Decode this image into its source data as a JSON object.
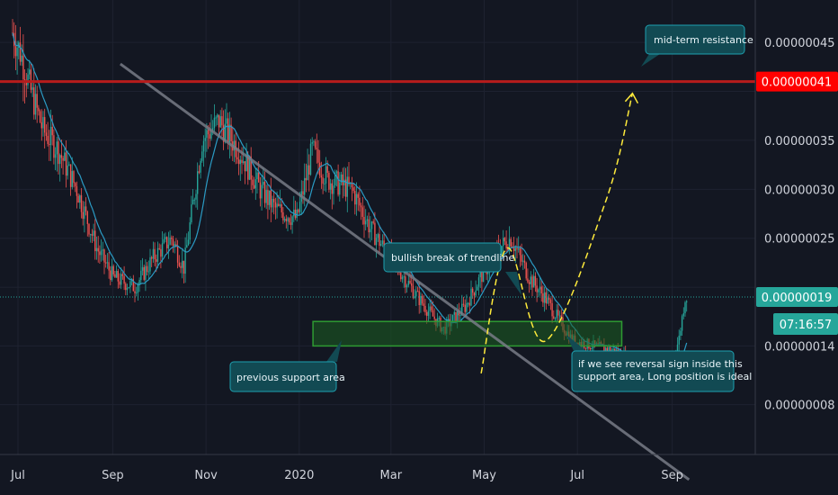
{
  "chart_data": {
    "type": "candlestick",
    "x_range": [
      "2019-06-20",
      "2019-10-04"
    ],
    "y_range": [
      2e-08,
      4.9e-08
    ],
    "x_ticks": [
      "Jul",
      "Sep",
      "Nov",
      "2020",
      "Mar",
      "May",
      "Jul",
      "Sep"
    ],
    "y_ticks": [
      {
        "value": 4.5e-07,
        "label": "0.00000045"
      },
      {
        "value": 3.5e-07,
        "label": "0.00000035"
      },
      {
        "value": 3e-07,
        "label": "0.00000030"
      },
      {
        "value": 2.5e-07,
        "label": "0.00000025"
      },
      {
        "value": 1.4e-07,
        "label": "0.00000014"
      },
      {
        "value": 8e-08,
        "label": "0.00000008"
      }
    ],
    "grid": true,
    "colors": {
      "background": "#131722",
      "grid": "#1e2230",
      "up": "#26a69a",
      "down": "#ef5350",
      "moving_average": "#2b9bc4",
      "resistance": "#b71c1c",
      "trendline": "#787b86",
      "support_zone": "#2e7d32",
      "projection": "#ffeb3b",
      "annotation_bg": "#124a53",
      "annotation_border": "#1ea0b0"
    },
    "resistance": {
      "price": 4.1e-07,
      "label": "0.00000041",
      "color": "#ff0000"
    },
    "current_price": {
      "price": 1.9e-07,
      "label": "0.00000019",
      "countdown": "07:16:57",
      "color": "#26a69a"
    },
    "trendline": {
      "from": {
        "date": "2019-09-06",
        "price": 4.28e-07
      },
      "to": {
        "date": "2020-09-12",
        "price": 3.5e-09
      }
    },
    "support_zone": {
      "from_date": "2020-01-10",
      "to_date": "2020-07-30",
      "low": 1.4e-07,
      "high": 1.65e-07
    },
    "projection_path": [
      {
        "date": "2020-04-29",
        "price": 1.12e-07
      },
      {
        "date": "2020-05-16",
        "price": 2.4e-07
      },
      {
        "date": "2020-06-10",
        "price": 1.45e-07
      },
      {
        "date": "2020-07-20",
        "price": 2.9e-07
      },
      {
        "date": "2020-08-06",
        "price": 3.98e-07
      }
    ],
    "annotations": [
      "mid-term resistance",
      "bullish break of trendline",
      "previous support area",
      "if we see reversal sign inside this support area, Long position is ideal"
    ]
  }
}
